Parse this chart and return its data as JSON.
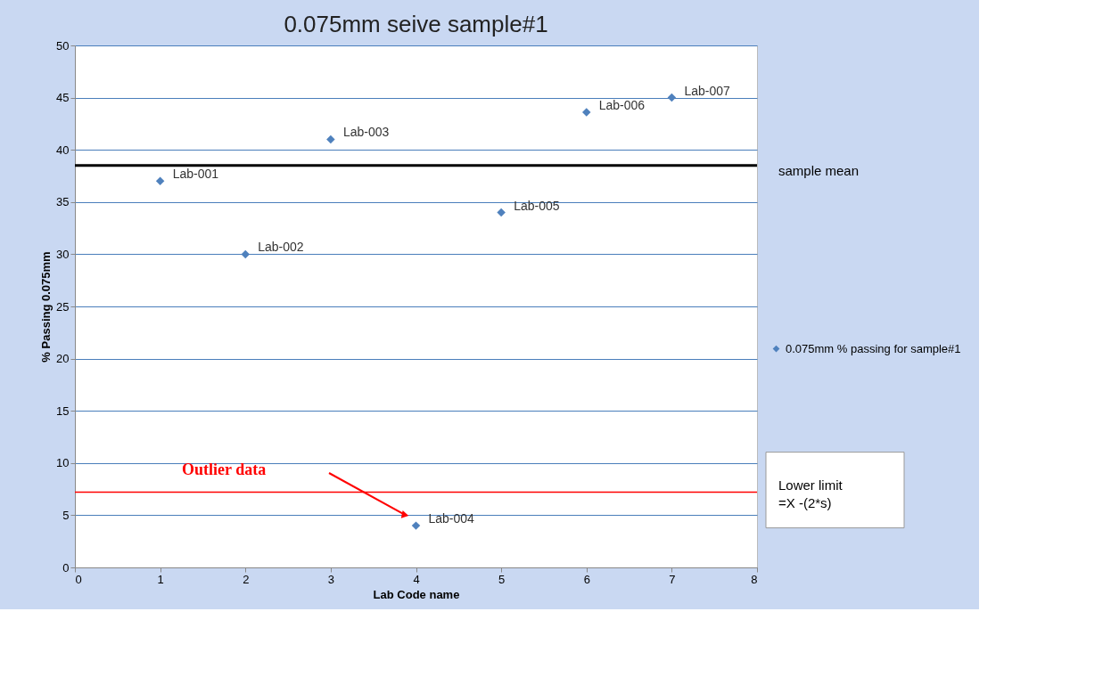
{
  "chart_data": {
    "type": "scatter",
    "title": "0.075mm seive  sample#1",
    "xlabel": "Lab Code name",
    "ylabel": "% Passing 0.075mm",
    "x": [
      1,
      2,
      3,
      4,
      5,
      6,
      7
    ],
    "series": [
      {
        "name": "0.075mm % passing for sample#1",
        "color": "#4f81bd",
        "values": [
          37,
          30,
          41,
          4,
          34,
          43.6,
          45
        ]
      }
    ],
    "xlim": [
      0,
      8
    ],
    "xticks": [
      0,
      1,
      2,
      3,
      4,
      5,
      6,
      7,
      8
    ],
    "ylim": [
      0,
      50
    ],
    "yticks": [
      0,
      5,
      10,
      15,
      20,
      25,
      30,
      35,
      40,
      45,
      50
    ],
    "grid": "y",
    "marker": "diamond",
    "legend": "right",
    "ref_lines": [
      {
        "axis": "y",
        "value": 38.5,
        "label": "sample mean",
        "color": "#000000"
      },
      {
        "axis": "y",
        "value": 7.2,
        "label": "Lower limit\n =X -(2*s)",
        "color": "#ff0000"
      }
    ],
    "annotations": [
      {
        "text": "Lab-001",
        "x": 1,
        "y": 37
      },
      {
        "text": "Lab-002",
        "x": 2,
        "y": 30
      },
      {
        "text": "Lab-003",
        "x": 3,
        "y": 41
      },
      {
        "text": "Lab-004",
        "x": 4,
        "y": 4
      },
      {
        "text": "Lab-005",
        "x": 5,
        "y": 34
      },
      {
        "text": "Lab-006",
        "x": 6,
        "y": 43.6
      },
      {
        "text": "Lab-007",
        "x": 7,
        "y": 45
      },
      "Outlier data"
    ]
  }
}
